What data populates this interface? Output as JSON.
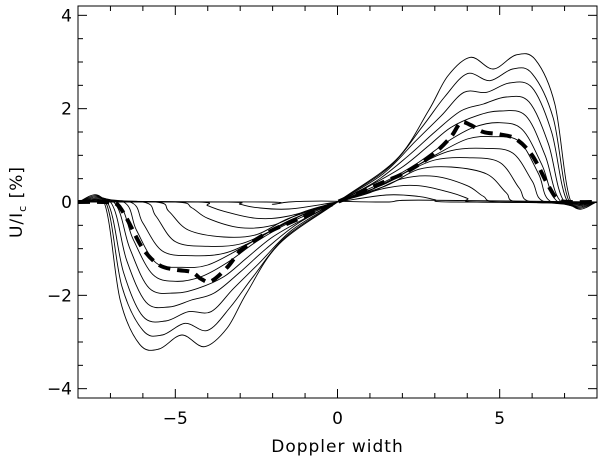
{
  "chart_data": {
    "type": "line",
    "xlabel": "Doppler width",
    "ylabel": {
      "main": "U/I",
      "sub": "c",
      "unit": " [%]"
    },
    "xlim": [
      -8,
      8
    ],
    "ylim": [
      -4.2,
      4.2
    ],
    "x_ticks": [
      -5,
      0,
      5
    ],
    "x_tick_labels": [
      "−5",
      "0",
      "5"
    ],
    "y_ticks": [
      -4,
      -2,
      0,
      2,
      4
    ],
    "y_tick_labels": [
      "−4",
      "−2",
      "0",
      "2",
      "4"
    ],
    "grid": false,
    "legend": "none",
    "series": [
      {
        "style": "thin",
        "x": [
          -8,
          -2.2,
          -2.0,
          -1.5,
          -0.5,
          1.5,
          2.5,
          8
        ],
        "y": [
          0,
          0,
          -0.05,
          0,
          0.02,
          0,
          0.04,
          0
        ]
      },
      {
        "style": "thin",
        "x": [
          -8,
          -3.4,
          -3.0,
          -2.5,
          -1.5,
          0.0,
          1.5,
          2.5,
          3.0,
          3.5,
          8
        ],
        "y": [
          0,
          0,
          -0.05,
          -0.12,
          -0.15,
          0.0,
          0.15,
          0.12,
          0.05,
          0,
          0
        ]
      },
      {
        "style": "thin",
        "x": [
          -8,
          -4.3,
          -4.0,
          -3.5,
          -2.5,
          -1.5,
          0.0,
          1.5,
          2.5,
          3.5,
          4.0,
          4.3,
          8
        ],
        "y": [
          0,
          0,
          -0.08,
          -0.2,
          -0.35,
          -0.3,
          0.0,
          0.3,
          0.35,
          0.2,
          0.08,
          0,
          0
        ]
      },
      {
        "style": "thin",
        "x": [
          -8,
          -5.0,
          -4.5,
          -4.0,
          -3.0,
          -2.0,
          -1.0,
          0.0,
          1.0,
          2.0,
          3.0,
          4.0,
          4.5,
          5.0,
          8
        ],
        "y": [
          0,
          0,
          -0.12,
          -0.35,
          -0.55,
          -0.5,
          -0.2,
          0.0,
          0.2,
          0.5,
          0.55,
          0.35,
          0.12,
          0,
          0
        ]
      },
      {
        "style": "thin",
        "x": [
          -8,
          -5.6,
          -5.2,
          -4.6,
          -3.5,
          -2.5,
          -1.5,
          0.0,
          1.5,
          2.5,
          3.5,
          4.6,
          5.2,
          5.6,
          8
        ],
        "y": [
          0,
          0,
          -0.2,
          -0.6,
          -0.75,
          -0.7,
          -0.35,
          0.0,
          0.35,
          0.7,
          0.75,
          0.6,
          0.2,
          0,
          0
        ]
      },
      {
        "style": "thin",
        "x": [
          -8,
          -6.0,
          -5.6,
          -5.0,
          -4.0,
          -3.0,
          -2.0,
          -1.0,
          0.0,
          1.0,
          2.0,
          3.0,
          4.0,
          5.0,
          5.6,
          6.0,
          8
        ],
        "y": [
          0,
          0,
          -0.3,
          -0.85,
          -0.95,
          -0.9,
          -0.6,
          -0.25,
          0.0,
          0.25,
          0.6,
          0.9,
          0.95,
          0.85,
          0.3,
          0,
          0
        ]
      },
      {
        "style": "thin",
        "x": [
          -8,
          -6.4,
          -6.0,
          -5.4,
          -4.5,
          -3.5,
          -2.5,
          -1.5,
          0.0,
          1.5,
          2.5,
          3.5,
          4.5,
          5.4,
          6.0,
          6.4,
          8
        ],
        "y": [
          0,
          0,
          -0.45,
          -1.05,
          -1.15,
          -1.1,
          -0.8,
          -0.4,
          0.0,
          0.4,
          0.8,
          1.1,
          1.15,
          1.05,
          0.45,
          0,
          0
        ]
      },
      {
        "style": "thin",
        "x": [
          -8,
          -6.6,
          -6.2,
          -5.6,
          -4.8,
          -4.0,
          -3.0,
          -2.0,
          -1.0,
          0.0,
          1.0,
          2.0,
          3.0,
          4.0,
          4.8,
          5.6,
          6.2,
          6.6,
          8
        ],
        "y": [
          0,
          0,
          -0.6,
          -1.3,
          -1.4,
          -1.35,
          -1.0,
          -0.6,
          -0.25,
          0.0,
          0.25,
          0.6,
          1.0,
          1.35,
          1.4,
          1.3,
          0.6,
          0,
          0
        ]
      },
      {
        "style": "thin",
        "x": [
          -8,
          -6.8,
          -6.3,
          -5.7,
          -5.0,
          -4.2,
          -3.4,
          -2.5,
          -1.5,
          0.0,
          1.5,
          2.5,
          3.4,
          4.2,
          5.0,
          5.7,
          6.3,
          6.8,
          8
        ],
        "y": [
          0,
          0,
          -0.8,
          -1.55,
          -1.7,
          -1.6,
          -1.3,
          -0.85,
          -0.45,
          0.0,
          0.45,
          0.85,
          1.3,
          1.6,
          1.7,
          1.55,
          0.8,
          0,
          0
        ]
      },
      {
        "style": "thin",
        "x": [
          -8,
          -6.9,
          -6.4,
          -5.8,
          -5.0,
          -4.3,
          -3.5,
          -2.8,
          -2.0,
          -1.0,
          0.0,
          1.0,
          2.0,
          2.8,
          3.5,
          4.3,
          5.0,
          5.8,
          6.4,
          6.9,
          8
        ],
        "y": [
          0,
          0,
          -1.0,
          -1.85,
          -1.95,
          -1.85,
          -1.6,
          -1.2,
          -0.75,
          -0.35,
          0.0,
          0.35,
          0.75,
          1.2,
          1.6,
          1.85,
          1.95,
          1.85,
          1.0,
          0,
          0
        ]
      },
      {
        "style": "thin",
        "x": [
          -8,
          -7.0,
          -6.5,
          -5.9,
          -5.2,
          -4.5,
          -3.8,
          -3.0,
          -2.2,
          -1.2,
          0.0,
          1.2,
          2.2,
          3.0,
          3.8,
          4.5,
          5.2,
          5.9,
          6.5,
          7.0,
          8
        ],
        "y": [
          0,
          0,
          -1.25,
          -2.15,
          -2.25,
          -2.1,
          -1.95,
          -1.5,
          -1.0,
          -0.45,
          0.0,
          0.45,
          1.0,
          1.5,
          1.95,
          2.1,
          2.25,
          2.15,
          1.25,
          0,
          0
        ]
      },
      {
        "style": "thin",
        "x": [
          -8,
          -7.1,
          -6.6,
          -6.0,
          -5.3,
          -4.6,
          -3.9,
          -3.2,
          -2.4,
          -1.4,
          0.0,
          1.4,
          2.4,
          3.2,
          3.9,
          4.6,
          5.3,
          6.0,
          6.6,
          7.1,
          8
        ],
        "y": [
          0,
          0,
          -1.5,
          -2.45,
          -2.55,
          -2.35,
          -2.35,
          -1.85,
          -1.3,
          -0.6,
          0.0,
          0.6,
          1.3,
          1.85,
          2.35,
          2.35,
          2.55,
          2.45,
          1.5,
          0,
          0
        ]
      },
      {
        "style": "thin",
        "x": [
          -8,
          -7.15,
          -6.65,
          -6.0,
          -5.4,
          -4.7,
          -4.0,
          -3.3,
          -2.6,
          -1.6,
          0.0,
          1.6,
          2.6,
          3.3,
          4.0,
          4.7,
          5.4,
          6.0,
          6.65,
          7.15,
          8
        ],
        "y": [
          0,
          0,
          -1.8,
          -2.75,
          -2.85,
          -2.6,
          -2.75,
          -2.25,
          -1.6,
          -0.75,
          0.0,
          0.75,
          1.6,
          2.25,
          2.75,
          2.6,
          2.85,
          2.75,
          1.8,
          0,
          0
        ]
      },
      {
        "style": "thin",
        "x": [
          -8,
          -7.2,
          -6.7,
          -6.1,
          -5.5,
          -4.8,
          -4.1,
          -3.4,
          -2.8,
          -1.8,
          0.0,
          1.8,
          2.8,
          3.4,
          4.1,
          4.8,
          5.5,
          6.1,
          6.7,
          7.2,
          8
        ],
        "y": [
          0,
          0,
          -2.1,
          -3.05,
          -3.15,
          -2.85,
          -3.1,
          -2.7,
          -1.95,
          -0.9,
          0.0,
          0.9,
          1.95,
          2.7,
          3.1,
          2.85,
          3.15,
          3.05,
          2.1,
          0,
          0
        ]
      },
      {
        "style": "dashed",
        "x": [
          -8,
          -7.2,
          -6.8,
          -6.5,
          -6.0,
          -5.5,
          -5.0,
          -4.5,
          -4.2,
          -3.9,
          -3.4,
          -3.0,
          -2.5,
          -2.0,
          -1.5,
          -1.0,
          -0.5,
          0.0,
          0.5,
          1.0,
          1.5,
          2.0,
          2.5,
          3.0,
          3.5,
          3.8,
          4.1,
          4.5,
          5.0,
          5.5,
          6.0,
          6.5,
          6.8,
          7.2,
          8
        ],
        "y": [
          0,
          0,
          -0.05,
          -0.35,
          -1.0,
          -1.35,
          -1.45,
          -1.5,
          -1.65,
          -1.7,
          -1.4,
          -1.05,
          -0.8,
          -0.6,
          -0.45,
          -0.3,
          -0.15,
          0.0,
          0.15,
          0.3,
          0.45,
          0.6,
          0.8,
          1.05,
          1.4,
          1.7,
          1.65,
          1.5,
          1.45,
          1.35,
          1.0,
          0.35,
          0.05,
          0,
          0
        ]
      }
    ]
  }
}
